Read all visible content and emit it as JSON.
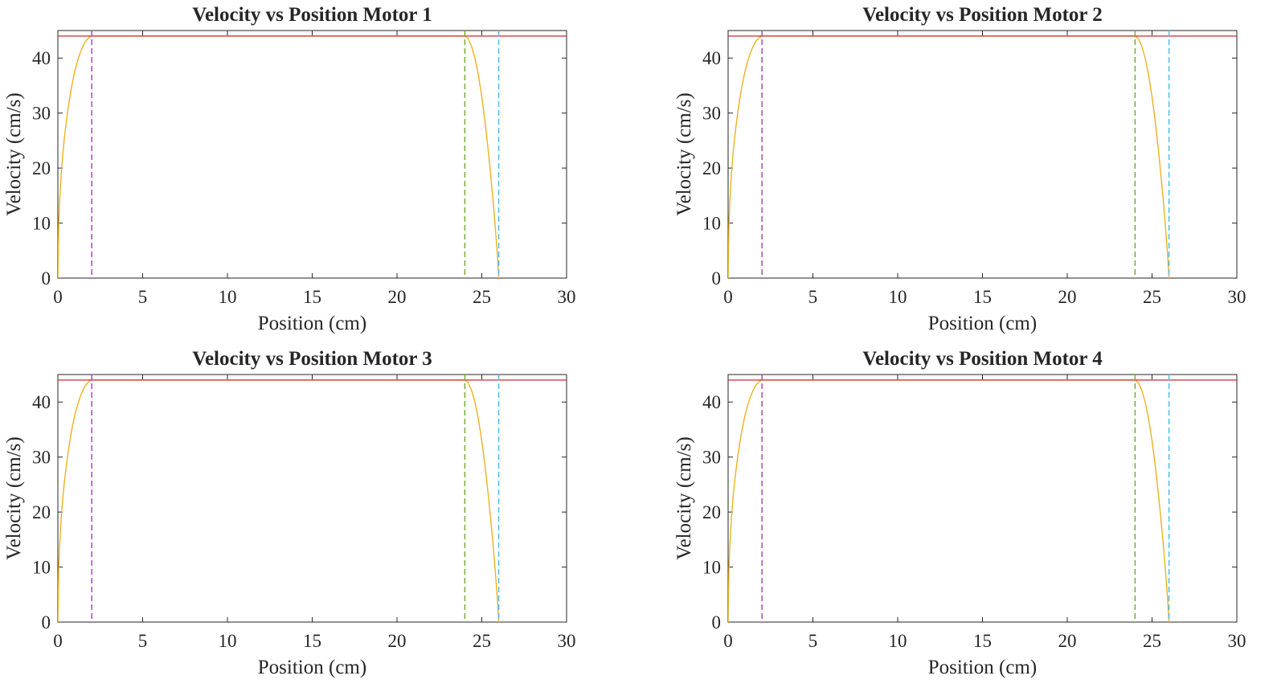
{
  "figure": {
    "colors": {
      "velocity": "#EDB120",
      "max_velocity": "#D62728",
      "accel_end": "#A64CB8",
      "decel_start": "#77AC30",
      "target": "#4DBEEE",
      "axes": "#262626"
    }
  },
  "chart_data": [
    {
      "type": "line",
      "title": "Velocity vs Position Motor 1",
      "xlabel": "Position (cm)",
      "ylabel": "Velocity (cm/s)",
      "xlim": [
        0,
        30
      ],
      "ylim": [
        0,
        45
      ],
      "xticks": [
        "0",
        "5",
        "10",
        "15",
        "20",
        "25",
        "30"
      ],
      "yticks": [
        "0",
        "10",
        "20",
        "30",
        "40"
      ],
      "grid": false,
      "vmax": 44,
      "ramp_distance": 2,
      "vlines": [
        2,
        24,
        26
      ],
      "series": [
        {
          "x": [
            0,
            0.05,
            0.1,
            0.2,
            0.3,
            0.4,
            0.5,
            0.6,
            0.7,
            0.8,
            0.9,
            1.0,
            1.1,
            1.2,
            1.3,
            1.4,
            1.5,
            1.6,
            1.7,
            1.8,
            1.9,
            2.0,
            24.0,
            24.2,
            24.4,
            24.6,
            24.8,
            25.0,
            25.2,
            25.4,
            25.6,
            25.7,
            25.8,
            25.9,
            25.95,
            26.0
          ],
          "y": [
            0,
            9.8,
            13.8,
            19.1,
            22.9,
            25.9,
            28.5,
            30.8,
            32.8,
            34.6,
            36.2,
            37.6,
            38.8,
            39.9,
            40.8,
            41.6,
            42.3,
            42.9,
            43.3,
            43.6,
            43.9,
            44.0,
            44.0,
            43.5,
            42.1,
            39.9,
            36.9,
            33.0,
            28.2,
            22.6,
            16.3,
            12.8,
            9.1,
            5.0,
            2.7,
            0
          ]
        }
      ]
    },
    {
      "type": "line",
      "title": "Velocity vs Position Motor 2",
      "xlabel": "Position (cm)",
      "ylabel": "Velocity (cm/s)",
      "xlim": [
        0,
        30
      ],
      "ylim": [
        0,
        45
      ],
      "xticks": [
        "0",
        "5",
        "10",
        "15",
        "20",
        "25",
        "30"
      ],
      "yticks": [
        "0",
        "10",
        "20",
        "30",
        "40"
      ],
      "grid": false,
      "vmax": 44,
      "ramp_distance": 2,
      "vlines": [
        2,
        24,
        26
      ],
      "series": [
        {
          "x": [
            0,
            0.05,
            0.1,
            0.2,
            0.3,
            0.4,
            0.5,
            0.6,
            0.7,
            0.8,
            0.9,
            1.0,
            1.1,
            1.2,
            1.3,
            1.4,
            1.5,
            1.6,
            1.7,
            1.8,
            1.9,
            2.0,
            24.0,
            24.2,
            24.4,
            24.6,
            24.8,
            25.0,
            25.2,
            25.4,
            25.6,
            25.7,
            25.8,
            25.9,
            25.95,
            26.0
          ],
          "y": [
            0,
            9.8,
            13.8,
            19.1,
            22.9,
            25.9,
            28.5,
            30.8,
            32.8,
            34.6,
            36.2,
            37.6,
            38.8,
            39.9,
            40.8,
            41.6,
            42.3,
            42.9,
            43.3,
            43.6,
            43.9,
            44.0,
            44.0,
            43.5,
            42.1,
            39.9,
            36.9,
            33.0,
            28.2,
            22.6,
            16.3,
            12.8,
            9.1,
            5.0,
            2.7,
            0
          ]
        }
      ]
    },
    {
      "type": "line",
      "title": "Velocity vs Position Motor 3",
      "xlabel": "Position (cm)",
      "ylabel": "Velocity (cm/s)",
      "xlim": [
        0,
        30
      ],
      "ylim": [
        0,
        45
      ],
      "xticks": [
        "0",
        "5",
        "10",
        "15",
        "20",
        "25",
        "30"
      ],
      "yticks": [
        "0",
        "10",
        "20",
        "30",
        "40"
      ],
      "grid": false,
      "vmax": 44,
      "ramp_distance": 2,
      "vlines": [
        2,
        24,
        26
      ],
      "series": [
        {
          "x": [
            0,
            0.05,
            0.1,
            0.2,
            0.3,
            0.4,
            0.5,
            0.6,
            0.7,
            0.8,
            0.9,
            1.0,
            1.1,
            1.2,
            1.3,
            1.4,
            1.5,
            1.6,
            1.7,
            1.8,
            1.9,
            2.0,
            24.0,
            24.2,
            24.4,
            24.6,
            24.8,
            25.0,
            25.2,
            25.4,
            25.6,
            25.7,
            25.8,
            25.9,
            25.95,
            26.0
          ],
          "y": [
            0,
            9.8,
            13.8,
            19.1,
            22.9,
            25.9,
            28.5,
            30.8,
            32.8,
            34.6,
            36.2,
            37.6,
            38.8,
            39.9,
            40.8,
            41.6,
            42.3,
            42.9,
            43.3,
            43.6,
            43.9,
            44.0,
            44.0,
            43.5,
            42.1,
            39.9,
            36.9,
            33.0,
            28.2,
            22.6,
            16.3,
            12.8,
            9.1,
            5.0,
            2.7,
            0
          ]
        }
      ]
    },
    {
      "type": "line",
      "title": "Velocity vs Position Motor 4",
      "xlabel": "Position (cm)",
      "ylabel": "Velocity (cm/s)",
      "xlim": [
        0,
        30
      ],
      "ylim": [
        0,
        45
      ],
      "xticks": [
        "0",
        "5",
        "10",
        "15",
        "20",
        "25",
        "30"
      ],
      "yticks": [
        "0",
        "10",
        "20",
        "30",
        "40"
      ],
      "grid": false,
      "vmax": 44,
      "ramp_distance": 2,
      "vlines": [
        2,
        24,
        26
      ],
      "series": [
        {
          "x": [
            0,
            0.05,
            0.1,
            0.2,
            0.3,
            0.4,
            0.5,
            0.6,
            0.7,
            0.8,
            0.9,
            1.0,
            1.1,
            1.2,
            1.3,
            1.4,
            1.5,
            1.6,
            1.7,
            1.8,
            1.9,
            2.0,
            24.0,
            24.2,
            24.4,
            24.6,
            24.8,
            25.0,
            25.2,
            25.4,
            25.6,
            25.7,
            25.8,
            25.9,
            25.95,
            26.0
          ],
          "y": [
            0,
            9.8,
            13.8,
            19.1,
            22.9,
            25.9,
            28.5,
            30.8,
            32.8,
            34.6,
            36.2,
            37.6,
            38.8,
            39.9,
            40.8,
            41.6,
            42.3,
            42.9,
            43.3,
            43.6,
            43.9,
            44.0,
            44.0,
            43.5,
            42.1,
            39.9,
            36.9,
            33.0,
            28.2,
            22.6,
            16.3,
            12.8,
            9.1,
            5.0,
            2.7,
            0
          ]
        }
      ]
    }
  ]
}
